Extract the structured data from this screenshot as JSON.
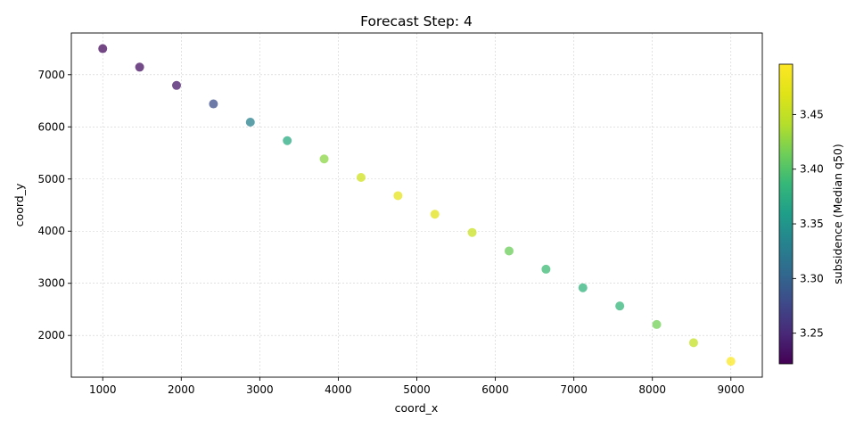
{
  "chart_data": {
    "type": "scatter",
    "title": "Forecast Step: 4",
    "xlabel": "coord_x",
    "ylabel": "coord_y",
    "xlim": [
      600,
      9400
    ],
    "ylim": [
      1200,
      7800
    ],
    "xticks": [
      1000,
      2000,
      3000,
      4000,
      5000,
      6000,
      7000,
      8000,
      9000
    ],
    "yticks": [
      2000,
      3000,
      4000,
      5000,
      6000,
      7000
    ],
    "grid": true,
    "colormap": "viridis",
    "colorbar": {
      "label": "subsidence (Median q50)",
      "range": [
        3.222,
        3.496
      ],
      "ticks": [
        3.25,
        3.3,
        3.35,
        3.4,
        3.45
      ]
    },
    "points": [
      {
        "x": 1000,
        "y": 7500,
        "value": 3.228
      },
      {
        "x": 1470,
        "y": 7145,
        "value": 3.232
      },
      {
        "x": 1940,
        "y": 6795,
        "value": 3.237
      },
      {
        "x": 2410,
        "y": 6440,
        "value": 3.28
      },
      {
        "x": 2880,
        "y": 6090,
        "value": 3.33
      },
      {
        "x": 3350,
        "y": 5735,
        "value": 3.372
      },
      {
        "x": 3820,
        "y": 5385,
        "value": 3.425
      },
      {
        "x": 4290,
        "y": 5030,
        "value": 3.458
      },
      {
        "x": 4760,
        "y": 4680,
        "value": 3.476
      },
      {
        "x": 5230,
        "y": 4325,
        "value": 3.47
      },
      {
        "x": 5705,
        "y": 3975,
        "value": 3.455
      },
      {
        "x": 6175,
        "y": 3620,
        "value": 3.412
      },
      {
        "x": 6645,
        "y": 3270,
        "value": 3.39
      },
      {
        "x": 7115,
        "y": 2915,
        "value": 3.382
      },
      {
        "x": 7585,
        "y": 2565,
        "value": 3.385
      },
      {
        "x": 8055,
        "y": 2210,
        "value": 3.415
      },
      {
        "x": 8525,
        "y": 1860,
        "value": 3.452
      },
      {
        "x": 9000,
        "y": 1505,
        "value": 3.494
      }
    ]
  }
}
